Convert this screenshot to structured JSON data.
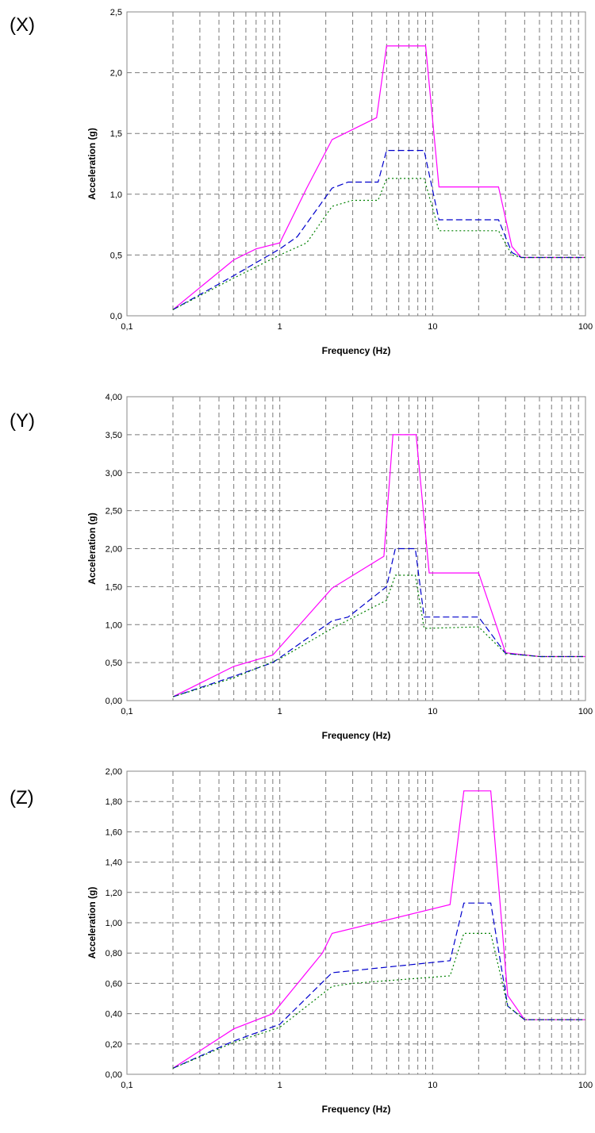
{
  "chart_data": [
    {
      "type": "line",
      "panel_label": "(X)",
      "xlabel": "Frequency (Hz)",
      "ylabel": "Acceleration (g)",
      "x_scale": "log",
      "xlim": [
        0.1,
        100
      ],
      "x_ticks": [
        "0,1",
        "1",
        "10",
        "100"
      ],
      "ylim": [
        0,
        2.5
      ],
      "y_ticks": [
        "0,0",
        "0,5",
        "1,0",
        "1,5",
        "2,0",
        "2,5"
      ],
      "grid": true,
      "colors": [
        "#ff00ff",
        "#0000cc",
        "#008000"
      ],
      "series": [
        {
          "style": "solid",
          "points": [
            [
              0.2,
              0.05
            ],
            [
              0.5,
              0.46
            ],
            [
              0.7,
              0.55
            ],
            [
              1,
              0.6
            ],
            [
              1.5,
              1.05
            ],
            [
              2.2,
              1.45
            ],
            [
              4.3,
              1.63
            ],
            [
              5,
              2.22
            ],
            [
              9,
              2.22
            ],
            [
              11,
              1.06
            ],
            [
              27,
              1.06
            ],
            [
              33,
              0.57
            ],
            [
              38,
              0.48
            ],
            [
              100,
              0.48
            ]
          ]
        },
        {
          "style": "dashed",
          "points": [
            [
              0.2,
              0.05
            ],
            [
              0.5,
              0.33
            ],
            [
              1,
              0.55
            ],
            [
              1.3,
              0.65
            ],
            [
              2.2,
              1.05
            ],
            [
              2.8,
              1.1
            ],
            [
              4.4,
              1.1
            ],
            [
              5,
              1.36
            ],
            [
              8.8,
              1.36
            ],
            [
              11,
              0.79
            ],
            [
              27,
              0.79
            ],
            [
              33,
              0.52
            ],
            [
              38,
              0.48
            ],
            [
              100,
              0.48
            ]
          ]
        },
        {
          "style": "dotted",
          "points": [
            [
              0.2,
              0.05
            ],
            [
              0.5,
              0.31
            ],
            [
              1,
              0.5
            ],
            [
              1.5,
              0.6
            ],
            [
              2.2,
              0.9
            ],
            [
              3,
              0.95
            ],
            [
              4.4,
              0.95
            ],
            [
              5,
              1.13
            ],
            [
              8.8,
              1.13
            ],
            [
              11,
              0.7
            ],
            [
              27,
              0.7
            ],
            [
              33,
              0.5
            ],
            [
              38,
              0.48
            ],
            [
              100,
              0.48
            ]
          ]
        }
      ]
    },
    {
      "type": "line",
      "panel_label": "(Y)",
      "xlabel": "Frequency (Hz)",
      "ylabel": "Acceleration (g)",
      "x_scale": "log",
      "xlim": [
        0.1,
        100
      ],
      "x_ticks": [
        "0,1",
        "1",
        "10",
        "100"
      ],
      "ylim": [
        0,
        4
      ],
      "y_ticks": [
        "0,00",
        "0,50",
        "1,00",
        "1,50",
        "2,00",
        "2,50",
        "3,00",
        "3,50",
        "4,00"
      ],
      "grid": true,
      "colors": [
        "#ff00ff",
        "#0000cc",
        "#008000"
      ],
      "series": [
        {
          "style": "solid",
          "points": [
            [
              0.2,
              0.05
            ],
            [
              0.5,
              0.45
            ],
            [
              0.9,
              0.6
            ],
            [
              2.2,
              1.48
            ],
            [
              4.8,
              1.9
            ],
            [
              5.5,
              3.5
            ],
            [
              7.8,
              3.5
            ],
            [
              9.5,
              1.68
            ],
            [
              20,
              1.68
            ],
            [
              30,
              0.63
            ],
            [
              50,
              0.58
            ],
            [
              100,
              0.58
            ]
          ]
        },
        {
          "style": "dashed",
          "points": [
            [
              0.2,
              0.05
            ],
            [
              0.5,
              0.32
            ],
            [
              0.9,
              0.5
            ],
            [
              2.2,
              1.05
            ],
            [
              2.8,
              1.1
            ],
            [
              5,
              1.5
            ],
            [
              5.7,
              2.0
            ],
            [
              7.7,
              2.0
            ],
            [
              8.8,
              1.1
            ],
            [
              20,
              1.1
            ],
            [
              30,
              0.62
            ],
            [
              50,
              0.58
            ],
            [
              100,
              0.58
            ]
          ]
        },
        {
          "style": "dotted",
          "points": [
            [
              0.2,
              0.05
            ],
            [
              0.5,
              0.3
            ],
            [
              1,
              0.55
            ],
            [
              2.2,
              0.95
            ],
            [
              5,
              1.32
            ],
            [
              5.7,
              1.65
            ],
            [
              7.7,
              1.65
            ],
            [
              8.8,
              0.95
            ],
            [
              20,
              0.97
            ],
            [
              30,
              0.62
            ],
            [
              50,
              0.58
            ],
            [
              100,
              0.58
            ]
          ]
        }
      ]
    },
    {
      "type": "line",
      "panel_label": "(Z)",
      "xlabel": "Frequency (Hz)",
      "ylabel": "Acceleration (g)",
      "x_scale": "log",
      "xlim": [
        0.1,
        100
      ],
      "x_ticks": [
        "0,1",
        "1",
        "10",
        "100"
      ],
      "ylim": [
        0,
        2
      ],
      "y_ticks": [
        "0,00",
        "0,20",
        "0,40",
        "0,60",
        "0,80",
        "1,00",
        "1,20",
        "1,40",
        "1,60",
        "1,80",
        "2,00"
      ],
      "grid": true,
      "colors": [
        "#ff00ff",
        "#0000cc",
        "#008000"
      ],
      "series": [
        {
          "style": "solid",
          "points": [
            [
              0.2,
              0.04
            ],
            [
              0.5,
              0.3
            ],
            [
              0.9,
              0.4
            ],
            [
              1.9,
              0.8
            ],
            [
              2.2,
              0.93
            ],
            [
              13,
              1.12
            ],
            [
              16,
              1.87
            ],
            [
              24,
              1.87
            ],
            [
              31,
              0.52
            ],
            [
              40,
              0.36
            ],
            [
              100,
              0.36
            ]
          ]
        },
        {
          "style": "dashed",
          "points": [
            [
              0.2,
              0.04
            ],
            [
              0.5,
              0.22
            ],
            [
              1,
              0.33
            ],
            [
              2.2,
              0.67
            ],
            [
              13,
              0.75
            ],
            [
              16,
              1.13
            ],
            [
              24,
              1.13
            ],
            [
              31,
              0.45
            ],
            [
              40,
              0.36
            ],
            [
              100,
              0.36
            ]
          ]
        },
        {
          "style": "dotted",
          "points": [
            [
              0.2,
              0.04
            ],
            [
              0.5,
              0.21
            ],
            [
              1,
              0.31
            ],
            [
              2.2,
              0.58
            ],
            [
              3,
              0.6
            ],
            [
              13,
              0.65
            ],
            [
              16,
              0.93
            ],
            [
              24,
              0.93
            ],
            [
              31,
              0.45
            ],
            [
              40,
              0.36
            ],
            [
              100,
              0.36
            ]
          ]
        }
      ]
    }
  ]
}
